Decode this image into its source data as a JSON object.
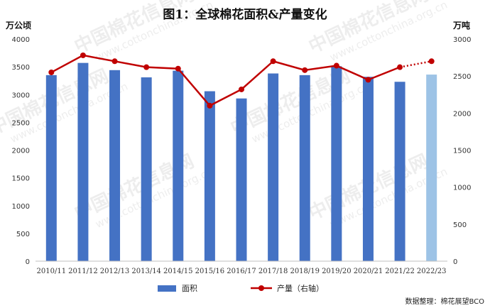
{
  "chart_data": {
    "type": "bar+line",
    "title": "图1：全球棉花面积&产量变化",
    "y_left_unit": "万公顷",
    "y_right_unit": "万吨",
    "y_left_ticks": [
      "0",
      "500",
      "1000",
      "1500",
      "2000",
      "2500",
      "3000",
      "3500",
      "4000"
    ],
    "y_right_ticks": [
      "0",
      "500",
      "1000",
      "1500",
      "2000",
      "2500",
      "3000"
    ],
    "ylim_left": [
      0,
      4000
    ],
    "ylim_right": [
      0,
      3000
    ],
    "categories": [
      "2010/11",
      "2011/12",
      "2012/13",
      "2013/14",
      "2014/15",
      "2015/16",
      "2016/17",
      "2017/18",
      "2018/19",
      "2019/20",
      "2020/21",
      "2021/22",
      "2022/23"
    ],
    "series": [
      {
        "name": "面积",
        "axis": "left",
        "kind": "bar",
        "color": "#4472c4",
        "last_color": "#9dc3e6",
        "values": [
          3350,
          3570,
          3440,
          3310,
          3430,
          3060,
          2930,
          3380,
          3350,
          3510,
          3320,
          3230,
          3360
        ]
      },
      {
        "name": "产量（右轴）",
        "axis": "right",
        "kind": "line",
        "color": "#c00000",
        "last_segment_dotted": true,
        "values": [
          2550,
          2780,
          2700,
          2620,
          2600,
          2100,
          2320,
          2700,
          2580,
          2640,
          2450,
          2620,
          2700
        ]
      }
    ],
    "legend": [
      "面积",
      "产量（右轴）"
    ],
    "legend_position": "bottom",
    "grid": false
  },
  "source": "数据整理：棉花展望BCO",
  "watermark": {
    "text": "中国棉花信息网",
    "url": "www.cottonchina.org.cn"
  }
}
